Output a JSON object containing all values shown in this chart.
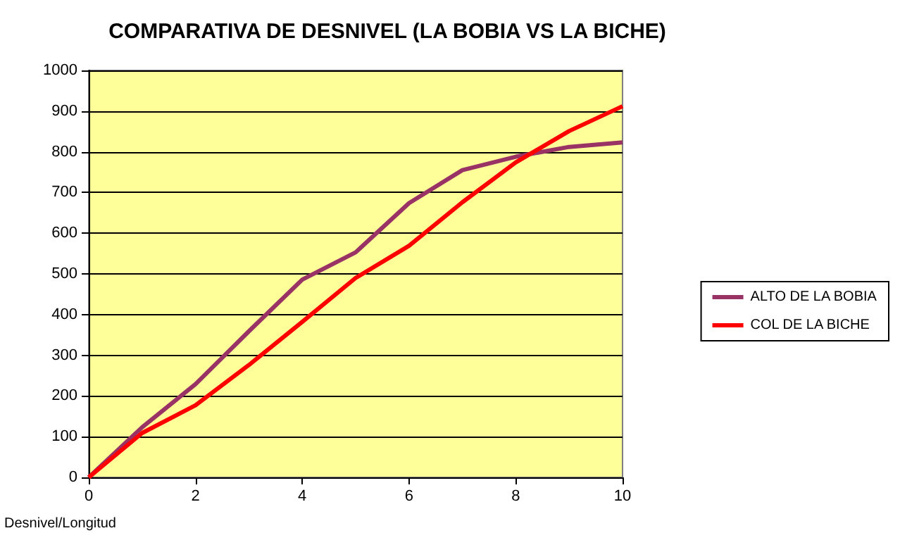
{
  "chart_data": {
    "type": "line",
    "title": "COMPARATIVA DE DESNIVEL (LA BOBIA VS LA BICHE)",
    "xlabel": "Desnivel/Longitud",
    "x": [
      0,
      1,
      2,
      3,
      4,
      5,
      6,
      7,
      8,
      9,
      10
    ],
    "series": [
      {
        "name": "ALTO DE LA BOBIA",
        "color": "#993366",
        "values": [
          0,
          123,
          229,
          359,
          486,
          553,
          674,
          755,
          788,
          812,
          823
        ]
      },
      {
        "name": "COL DE LA BICHE",
        "color": "#ff0000",
        "values": [
          0,
          109,
          177,
          276,
          382,
          490,
          569,
          676,
          774,
          851,
          912
        ]
      }
    ],
    "xlim": [
      0,
      10
    ],
    "xticks": [
      0,
      2,
      4,
      6,
      8,
      10
    ],
    "ylim": [
      0,
      1000
    ],
    "yticks": [
      0,
      100,
      200,
      300,
      400,
      500,
      600,
      700,
      800,
      900,
      1000
    ],
    "grid": "y",
    "legend": "right",
    "marker": "none",
    "line_style": "solid"
  }
}
